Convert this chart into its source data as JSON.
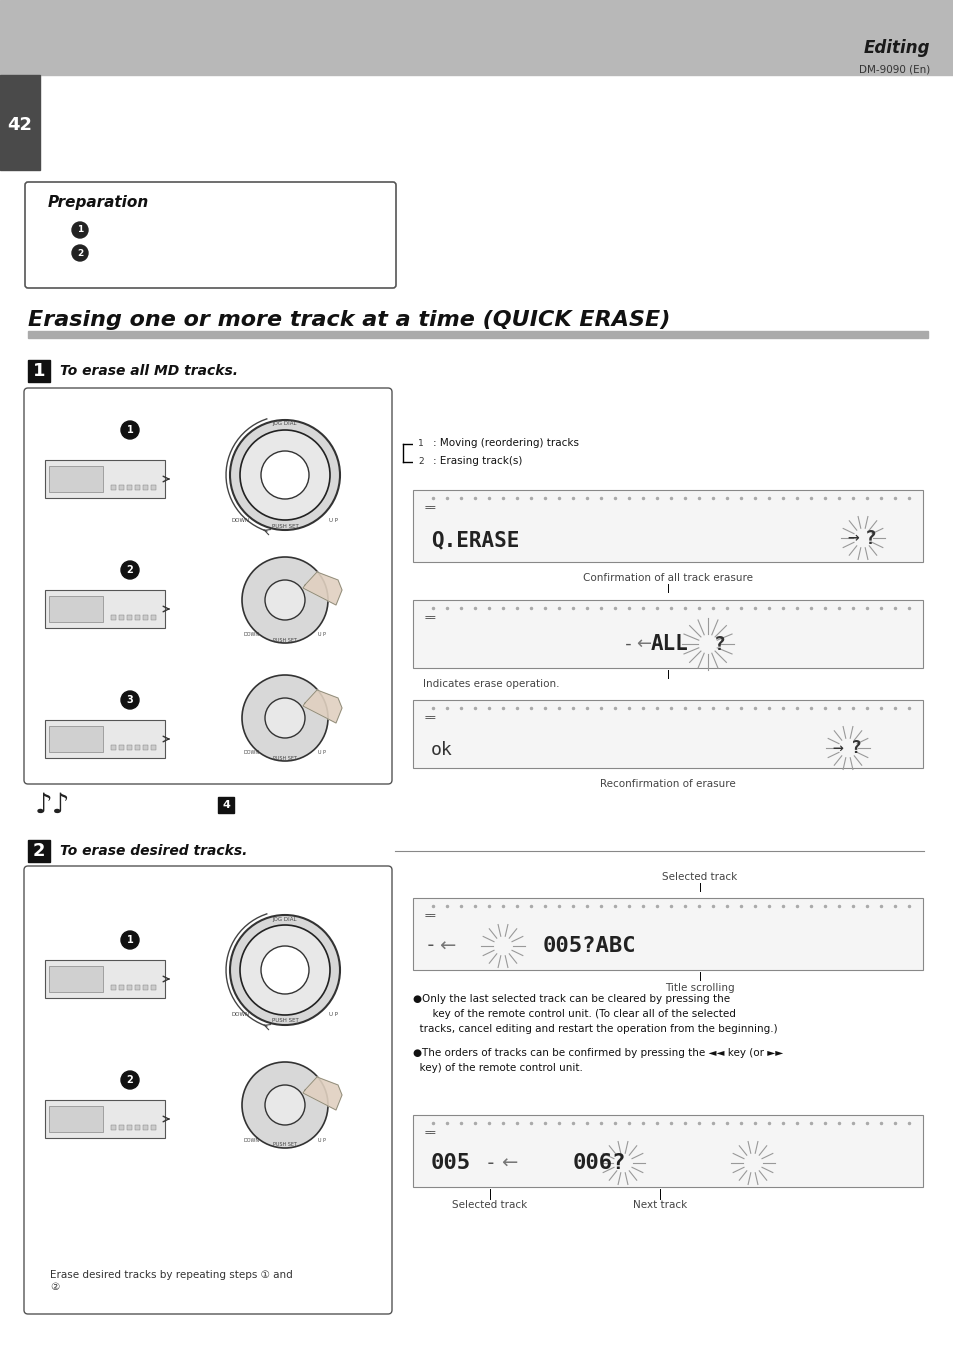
{
  "page_num": "42",
  "header_bg": "#b8b8b8",
  "header_text": "Editing",
  "subheader_text": "DM-9090 (En)",
  "page_tab_color": "#4a4a4a",
  "main_title": "Erasing one or more track at a time (QUICK ERASE)",
  "section1_label": "1",
  "section1_text": "To erase all MD tracks.",
  "section2_label": "2",
  "section2_text": "To erase desired tracks.",
  "prep_title": "Preparation",
  "bg_color": "#ffffff",
  "lcd_text1": "Q.ERASE →?",
  "lcd_text2": "←ALL ?",
  "lcd_text3_left": "ok",
  "lcd_text3_right": "→?",
  "lcd_text4": "←005?ABC",
  "lcd_text5": "005-←006?",
  "caption1": "Confirmation of all track erasure",
  "caption2": "Indicates erase operation.",
  "caption3": "Reconfirmation of erasure",
  "caption4": "Selected track",
  "caption5": "Title scrolling",
  "caption6": "Selected track",
  "caption7": "Next track",
  "note1": ": Moving (reordering) tracks",
  "note2": ": Erasing track(s)",
  "step_note": "Erase desired tracks by repeating steps ① and\n②",
  "bullet1_line1": "●Only the last selected track can be cleared by pressing the",
  "bullet1_line2": "      key of the remote control unit. (To clear all of the selected",
  "bullet1_line3": "  tracks, cancel editing and restart the operation from the beginning.)",
  "bullet2_line1": "●The orders of tracks can be confirmed by pressing the ◄◄ key (or ►►",
  "bullet2_line2": "  key) of the remote control unit."
}
